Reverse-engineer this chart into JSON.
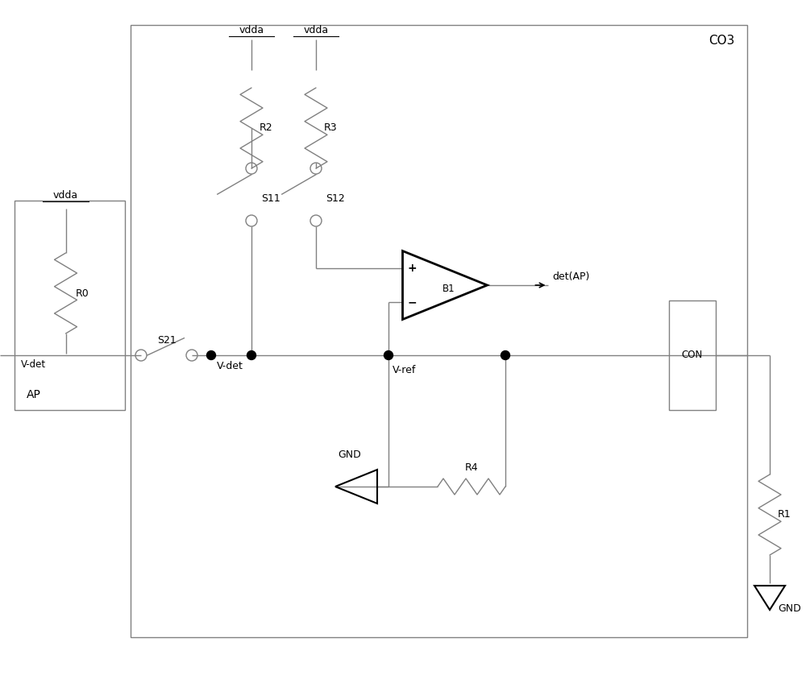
{
  "bg_color": "#ffffff",
  "line_color": "#808080",
  "thick_line_color": "#000000",
  "fig_width": 10.0,
  "fig_height": 8.59,
  "dpi": 100,
  "xlim": [
    0,
    10
  ],
  "ylim": [
    0,
    8.59
  ]
}
